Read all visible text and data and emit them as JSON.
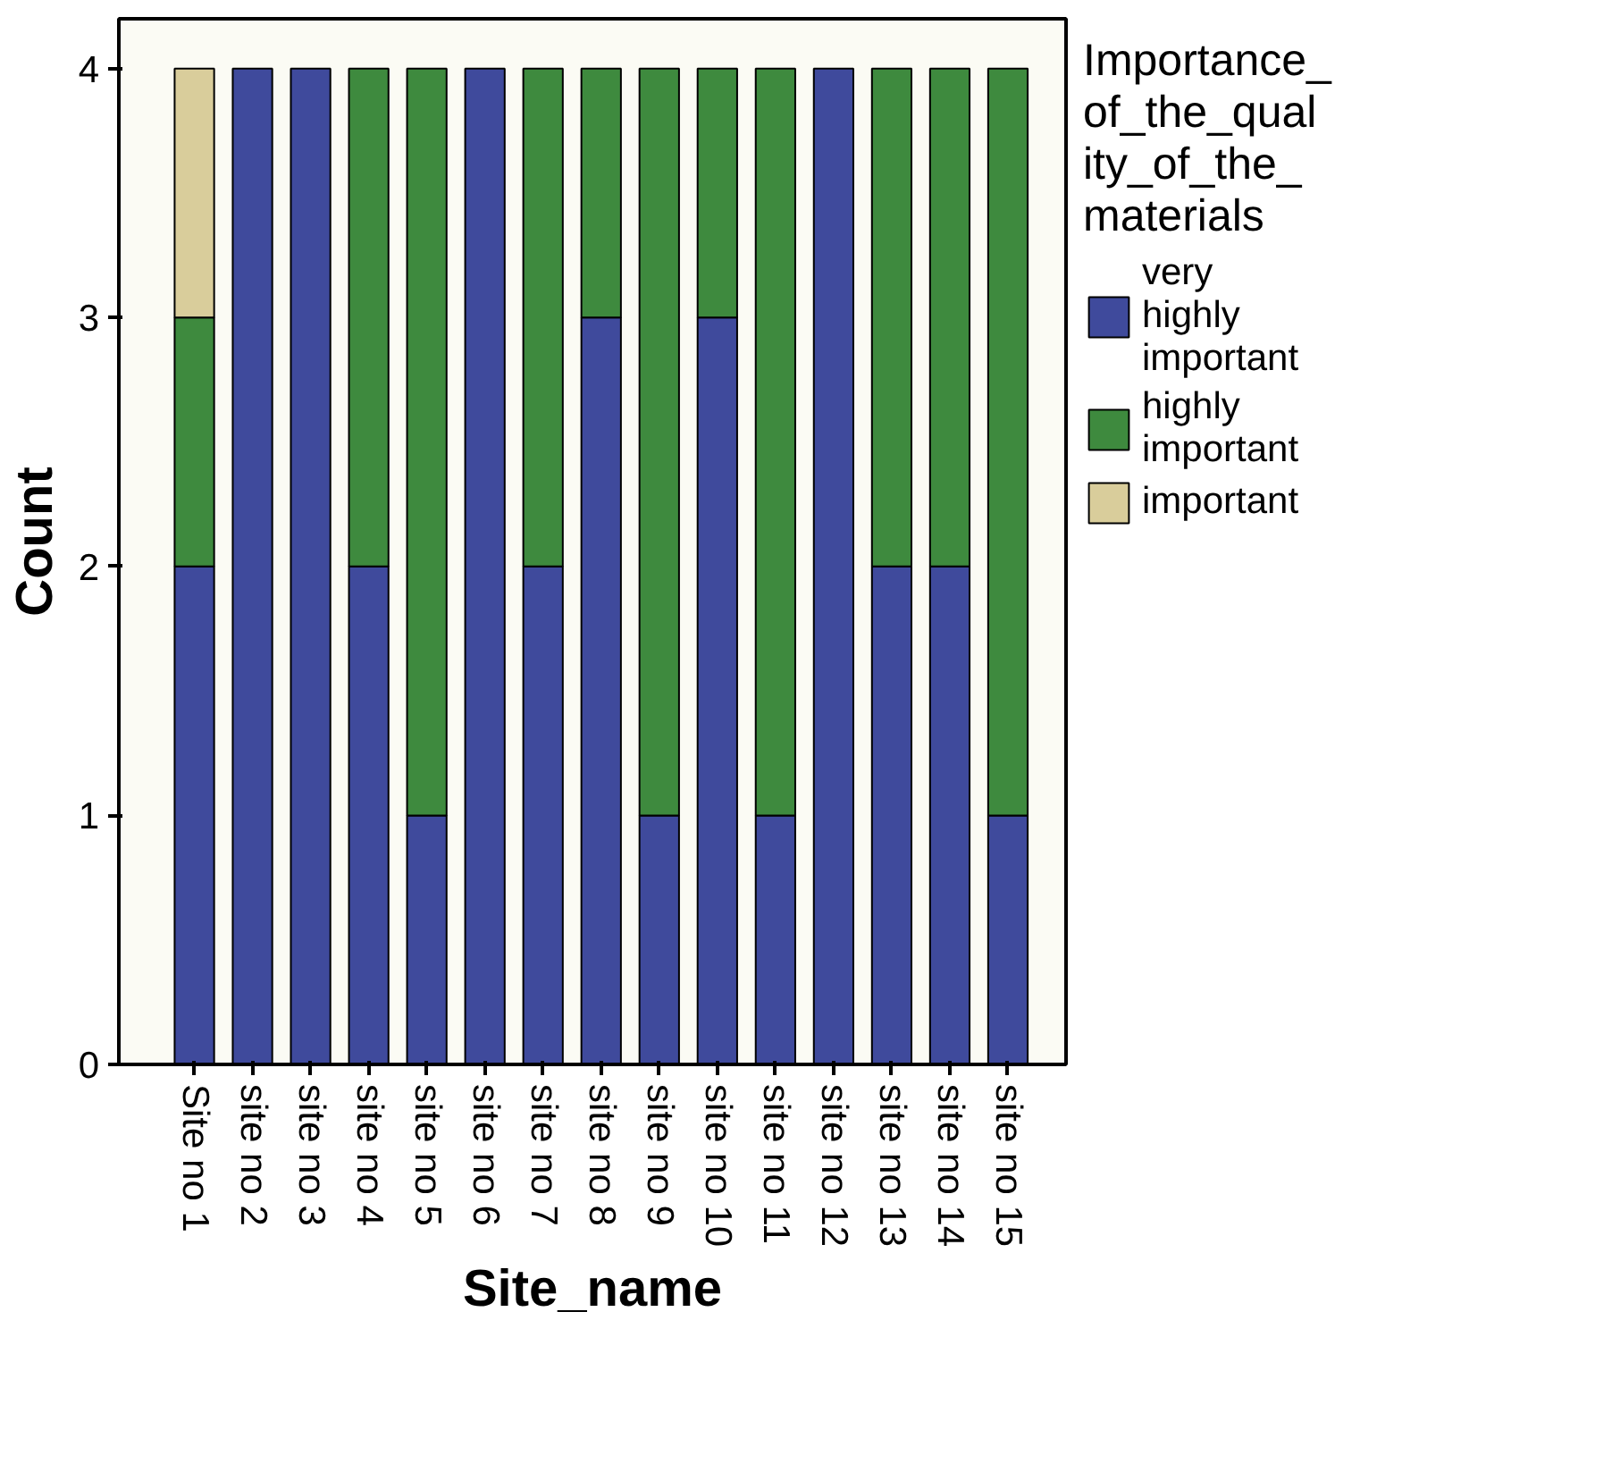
{
  "chart_data": {
    "type": "bar",
    "stacked": true,
    "xlabel": "Site_name",
    "ylabel": "Count",
    "legend_title": "Importance_of_the_quality_of_the_materials",
    "legend": "right",
    "categories": [
      "Site no 1",
      "site no 2",
      "site no 3",
      "site no 4",
      "site no 5",
      "site no 6",
      "site no 7",
      "site no 8",
      "site no 9",
      "site no 10",
      "site no 11",
      "site no 12",
      "site no 13",
      "site no 14",
      "site no 15"
    ],
    "series": [
      {
        "name": "very highly important",
        "color": "#3f4a9c",
        "values": [
          2,
          4,
          4,
          2,
          1,
          4,
          2,
          3,
          1,
          3,
          1,
          4,
          2,
          2,
          1
        ]
      },
      {
        "name": "highly important",
        "color": "#3e8a3e",
        "values": [
          1,
          0,
          0,
          2,
          3,
          0,
          2,
          1,
          3,
          1,
          3,
          0,
          2,
          2,
          3
        ]
      },
      {
        "name": "important",
        "color": "#d9cd9b",
        "values": [
          1,
          0,
          0,
          0,
          0,
          0,
          0,
          0,
          0,
          0,
          0,
          0,
          0,
          0,
          0
        ]
      }
    ],
    "ylim": [
      0,
      4.2
    ],
    "yticks": [
      0,
      1,
      2,
      3,
      4
    ],
    "grid": false
  }
}
